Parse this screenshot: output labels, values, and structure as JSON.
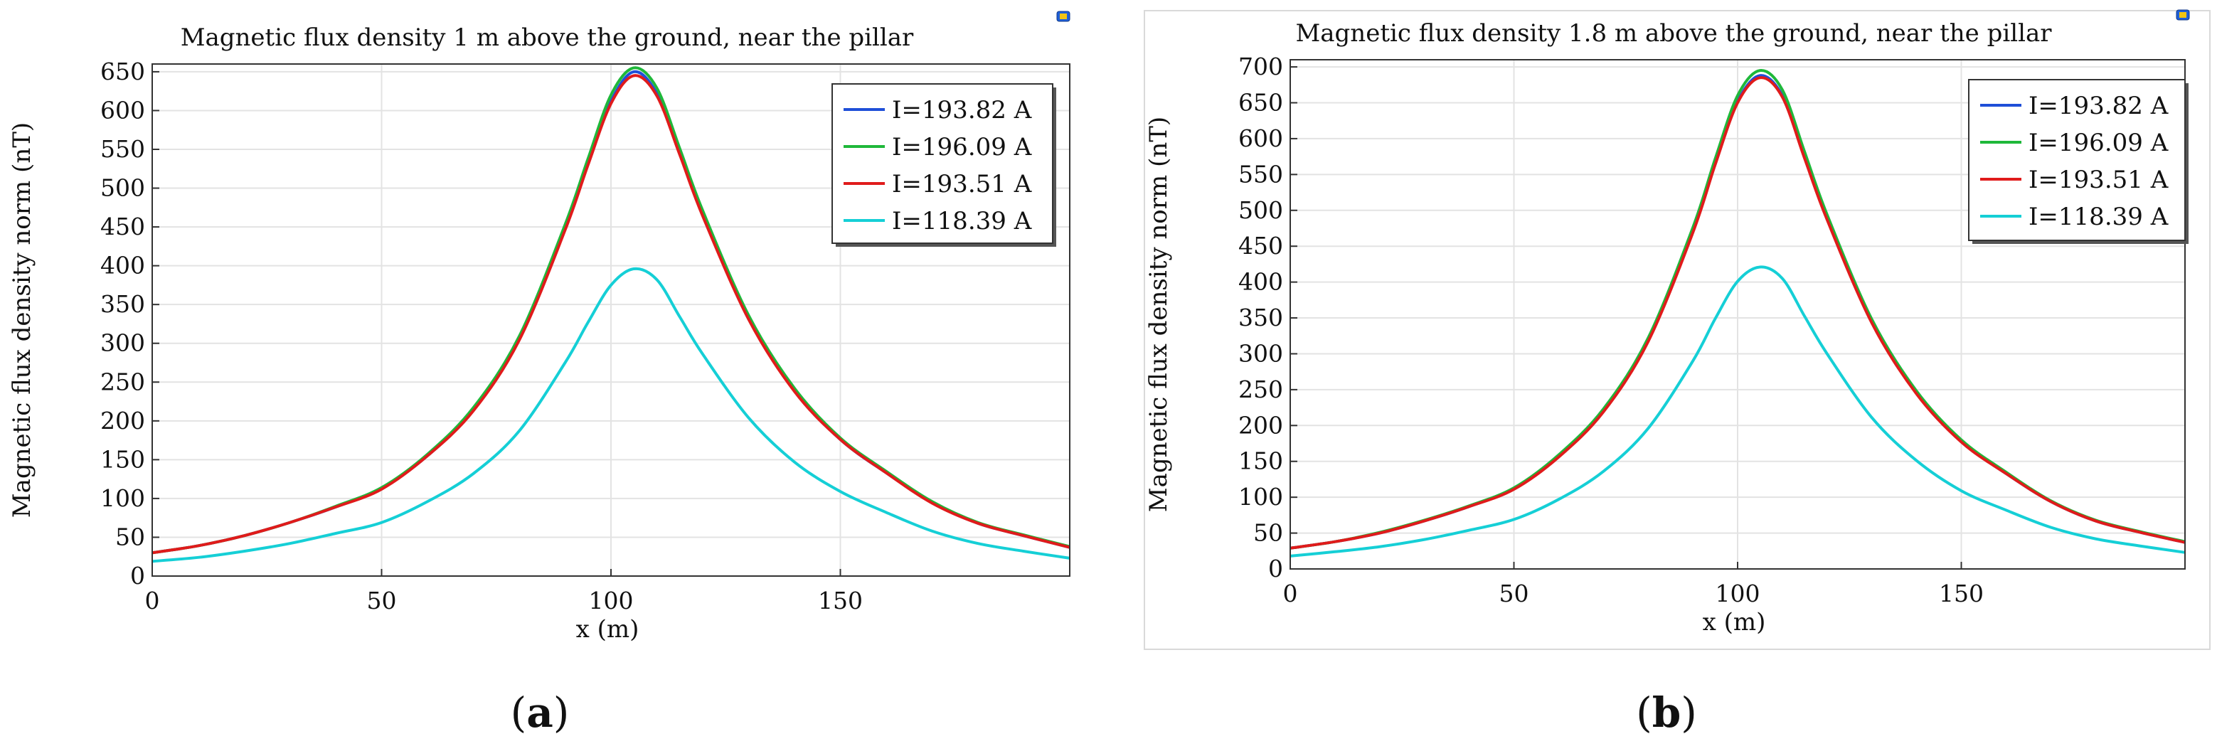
{
  "colors": {
    "series": [
      "#1f4fd8",
      "#1fb83a",
      "#e01b1b",
      "#15cfd6"
    ],
    "grid": "#e3e3e3",
    "axis": "#333333",
    "text": "#111111"
  },
  "chart_data": [
    {
      "type": "line",
      "panel_label": "(a)",
      "title": "Magnetic flux density 1 m above the  ground, near the  pillar",
      "xlabel": "x (m)",
      "ylabel": "Magnetic flux density norm (nT)",
      "xlim": [
        0,
        200
      ],
      "ylim": [
        0,
        660
      ],
      "xticks": [
        0,
        50,
        100,
        150
      ],
      "yticks": [
        0,
        50,
        100,
        150,
        200,
        250,
        300,
        350,
        400,
        450,
        500,
        550,
        600,
        650
      ],
      "grid": true,
      "legend_position": "top-right",
      "x": [
        0,
        10,
        20,
        30,
        40,
        50,
        60,
        70,
        80,
        90,
        95,
        100,
        105,
        110,
        115,
        120,
        130,
        140,
        150,
        160,
        170,
        180,
        190,
        200
      ],
      "series": [
        {
          "name": "I=193.82 A",
          "values": [
            30,
            39,
            52,
            69,
            89,
            113,
            155,
            214,
            305,
            448,
            532,
            612,
            650,
            622,
            545,
            466,
            332,
            239,
            176,
            133,
            95,
            68,
            52,
            37
          ]
        },
        {
          "name": "I=196.09 A",
          "values": [
            30,
            39,
            52,
            69,
            90,
            114,
            157,
            217,
            309,
            453,
            538,
            620,
            655,
            629,
            551,
            471,
            336,
            242,
            178,
            135,
            96,
            69,
            53,
            38
          ]
        },
        {
          "name": "I=193.51 A",
          "values": [
            30,
            39,
            52,
            69,
            89,
            112,
            155,
            213,
            304,
            446,
            530,
            609,
            645,
            619,
            543,
            464,
            331,
            238,
            176,
            133,
            94,
            68,
            52,
            37
          ]
        },
        {
          "name": "I=118.39 A",
          "values": [
            19,
            24,
            32,
            42,
            55,
            69,
            96,
            132,
            187,
            275,
            327,
            375,
            396,
            382,
            334,
            286,
            204,
            147,
            109,
            82,
            58,
            42,
            32,
            23
          ]
        }
      ]
    },
    {
      "type": "line",
      "panel_label": "(b)",
      "title": "Magnetic flux density 1.8 m above the  ground, near the  pillar",
      "xlabel": "x (m)",
      "ylabel": "Magnetic flux density norm (nT)",
      "xlim": [
        0,
        200
      ],
      "ylim": [
        0,
        710
      ],
      "xticks": [
        0,
        50,
        100,
        150
      ],
      "yticks": [
        0,
        50,
        100,
        150,
        200,
        250,
        300,
        350,
        400,
        450,
        500,
        550,
        600,
        650,
        700
      ],
      "grid": true,
      "legend_position": "top-right",
      "x": [
        0,
        10,
        20,
        30,
        40,
        50,
        60,
        70,
        80,
        90,
        95,
        100,
        105,
        110,
        115,
        120,
        130,
        140,
        150,
        160,
        170,
        180,
        190,
        200
      ],
      "series": [
        {
          "name": "I=193.82 A",
          "values": [
            29,
            38,
            50,
            67,
            87,
            112,
            157,
            220,
            318,
            470,
            565,
            652,
            688,
            660,
            574,
            488,
            344,
            245,
            178,
            133,
            94,
            67,
            51,
            37
          ]
        },
        {
          "name": "I=196.09 A",
          "values": [
            29,
            38,
            51,
            68,
            88,
            113,
            159,
            223,
            322,
            476,
            572,
            660,
            695,
            668,
            581,
            494,
            348,
            248,
            180,
            135,
            95,
            68,
            52,
            38
          ]
        },
        {
          "name": "I=193.51 A",
          "values": [
            29,
            38,
            50,
            67,
            87,
            111,
            156,
            219,
            317,
            469,
            564,
            650,
            685,
            658,
            572,
            487,
            343,
            244,
            177,
            133,
            94,
            67,
            51,
            37
          ]
        },
        {
          "name": "I=118.39 A",
          "values": [
            18,
            24,
            31,
            41,
            54,
            69,
            97,
            136,
            196,
            290,
            349,
            401,
            421,
            405,
            352,
            300,
            211,
            151,
            109,
            82,
            58,
            42,
            32,
            23
          ]
        }
      ]
    }
  ]
}
